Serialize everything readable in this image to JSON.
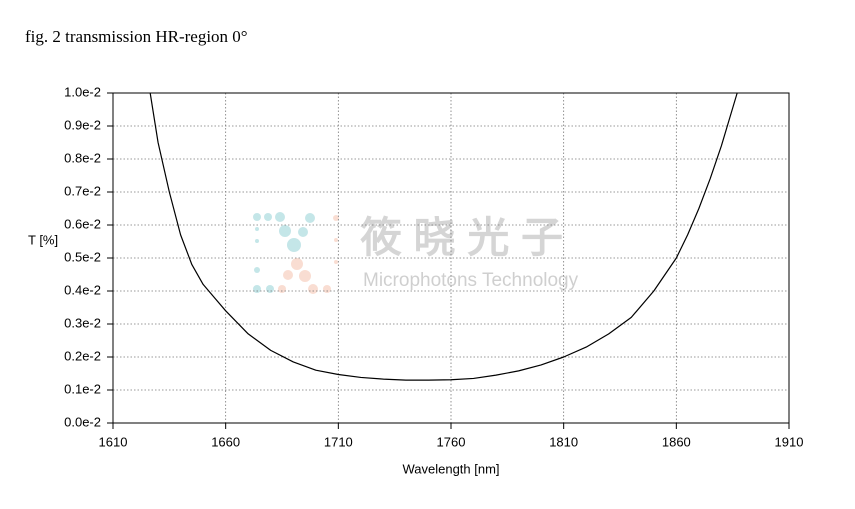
{
  "chart_data": {
    "type": "line",
    "title": "fig. 2 transmission HR-region  0°",
    "xlabel": "Wavelength [nm]",
    "ylabel": "T [%]",
    "watermark": {
      "name": "筱 晓 光 子",
      "subtitle": "Microphotons Technology"
    },
    "x": [
      1626.5,
      1630,
      1635,
      1640,
      1645,
      1650,
      1655,
      1660,
      1670,
      1680,
      1690,
      1700,
      1710,
      1720,
      1730,
      1740,
      1750,
      1760,
      1770,
      1780,
      1790,
      1800,
      1810,
      1820,
      1830,
      1840,
      1850,
      1860,
      1865,
      1870,
      1875,
      1880,
      1887
    ],
    "values": [
      0.01,
      0.0085,
      0.007,
      0.0057,
      0.0048,
      0.0042,
      0.0038,
      0.0034,
      0.0027,
      0.0022,
      0.00185,
      0.0016,
      0.00147,
      0.00138,
      0.00133,
      0.0013,
      0.0013,
      0.00131,
      0.00135,
      0.00145,
      0.00158,
      0.00176,
      0.002,
      0.0023,
      0.0027,
      0.0032,
      0.004,
      0.005,
      0.0057,
      0.0065,
      0.0074,
      0.0084,
      0.01
    ],
    "color": "#000000",
    "xlim": [
      1610,
      1910
    ],
    "xticks": [
      1610,
      1660,
      1710,
      1760,
      1810,
      1860,
      1910
    ],
    "ylim": [
      0,
      0.01
    ],
    "yticks": [
      {
        "value": 0,
        "label": "0.0e-2"
      },
      {
        "value": 0.001,
        "label": "0.1e-2"
      },
      {
        "value": 0.002,
        "label": "0.2e-2"
      },
      {
        "value": 0.003,
        "label": "0.3e-2"
      },
      {
        "value": 0.004,
        "label": "0.4e-2"
      },
      {
        "value": 0.005,
        "label": "0.5e-2"
      },
      {
        "value": 0.006,
        "label": "0.6e-2"
      },
      {
        "value": 0.007,
        "label": "0.7e-2"
      },
      {
        "value": 0.008,
        "label": "0.8e-2"
      },
      {
        "value": 0.009,
        "label": "0.9e-2"
      },
      {
        "value": 0.01,
        "label": "1.0e-2"
      }
    ],
    "grid": true
  }
}
